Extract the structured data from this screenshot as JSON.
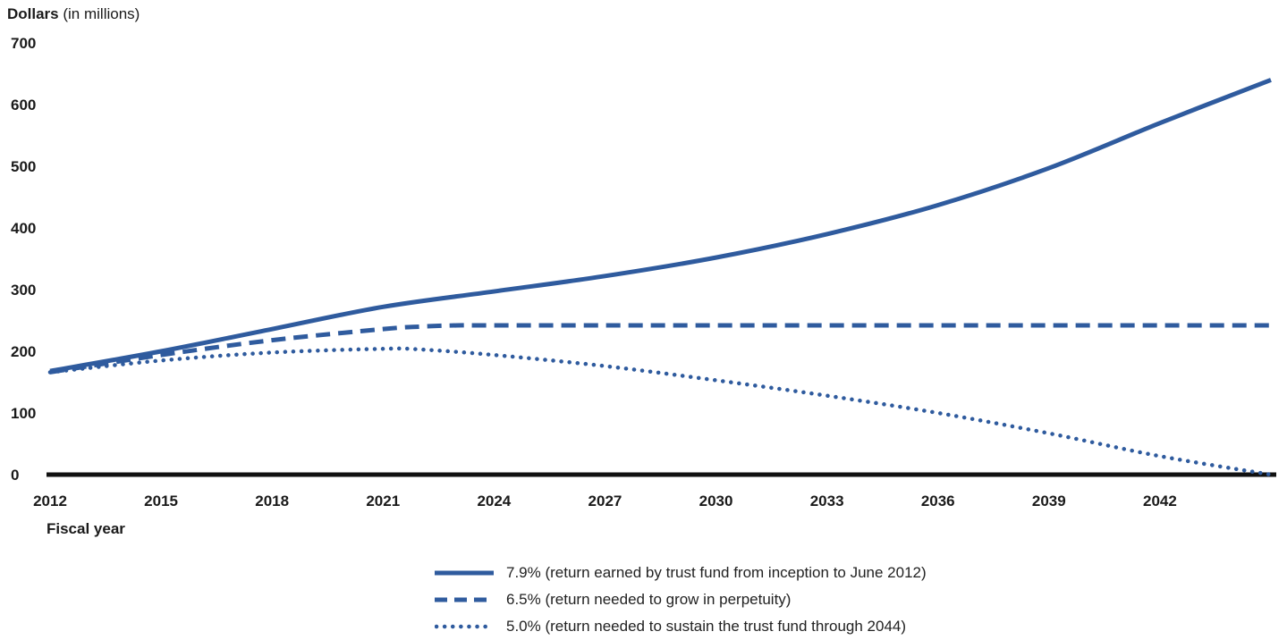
{
  "chart_data": {
    "type": "line",
    "ylabel_bold": "Dollars",
    "ylabel_rest": " (in millions)",
    "xlabel": "Fiscal year",
    "ylim": [
      0,
      700
    ],
    "xlim": [
      2012,
      2045
    ],
    "y_ticks": [
      "0",
      "100",
      "200",
      "300",
      "400",
      "500",
      "600",
      "700"
    ],
    "x_ticks": [
      "2012",
      "2015",
      "2018",
      "2021",
      "2024",
      "2027",
      "2030",
      "2033",
      "2036",
      "2039",
      "2042"
    ],
    "grid": false,
    "legend_position": "bottom-center",
    "series": [
      {
        "name": "7.9% (return earned by trust fund from inception to June 2012)",
        "style": "solid",
        "color": "#2f5b9e",
        "x": [
          2012,
          2015,
          2018,
          2021,
          2024,
          2027,
          2030,
          2033,
          2036,
          2039,
          2042,
          2045
        ],
        "y": [
          168,
          200,
          236,
          272,
          297,
          322,
          352,
          390,
          437,
          497,
          570,
          640
        ]
      },
      {
        "name": "6.5% (return needed to grow in perpetuity)",
        "style": "dashed",
        "color": "#2f5b9e",
        "x": [
          2012,
          2015,
          2018,
          2021,
          2022,
          2023,
          2024,
          2027,
          2030,
          2033,
          2036,
          2039,
          2042,
          2045
        ],
        "y": [
          166,
          194,
          218,
          236,
          240,
          242,
          242,
          242,
          242,
          242,
          242,
          242,
          242,
          242
        ]
      },
      {
        "name": "5.0% (return needed to sustain the trust fund through 2044)",
        "style": "dotted",
        "color": "#2f5b9e",
        "x": [
          2012,
          2015,
          2018,
          2021,
          2022,
          2024,
          2027,
          2030,
          2033,
          2036,
          2039,
          2042,
          2045
        ],
        "y": [
          166,
          185,
          198,
          204,
          203,
          194,
          176,
          153,
          128,
          100,
          67,
          30,
          0
        ]
      }
    ]
  }
}
